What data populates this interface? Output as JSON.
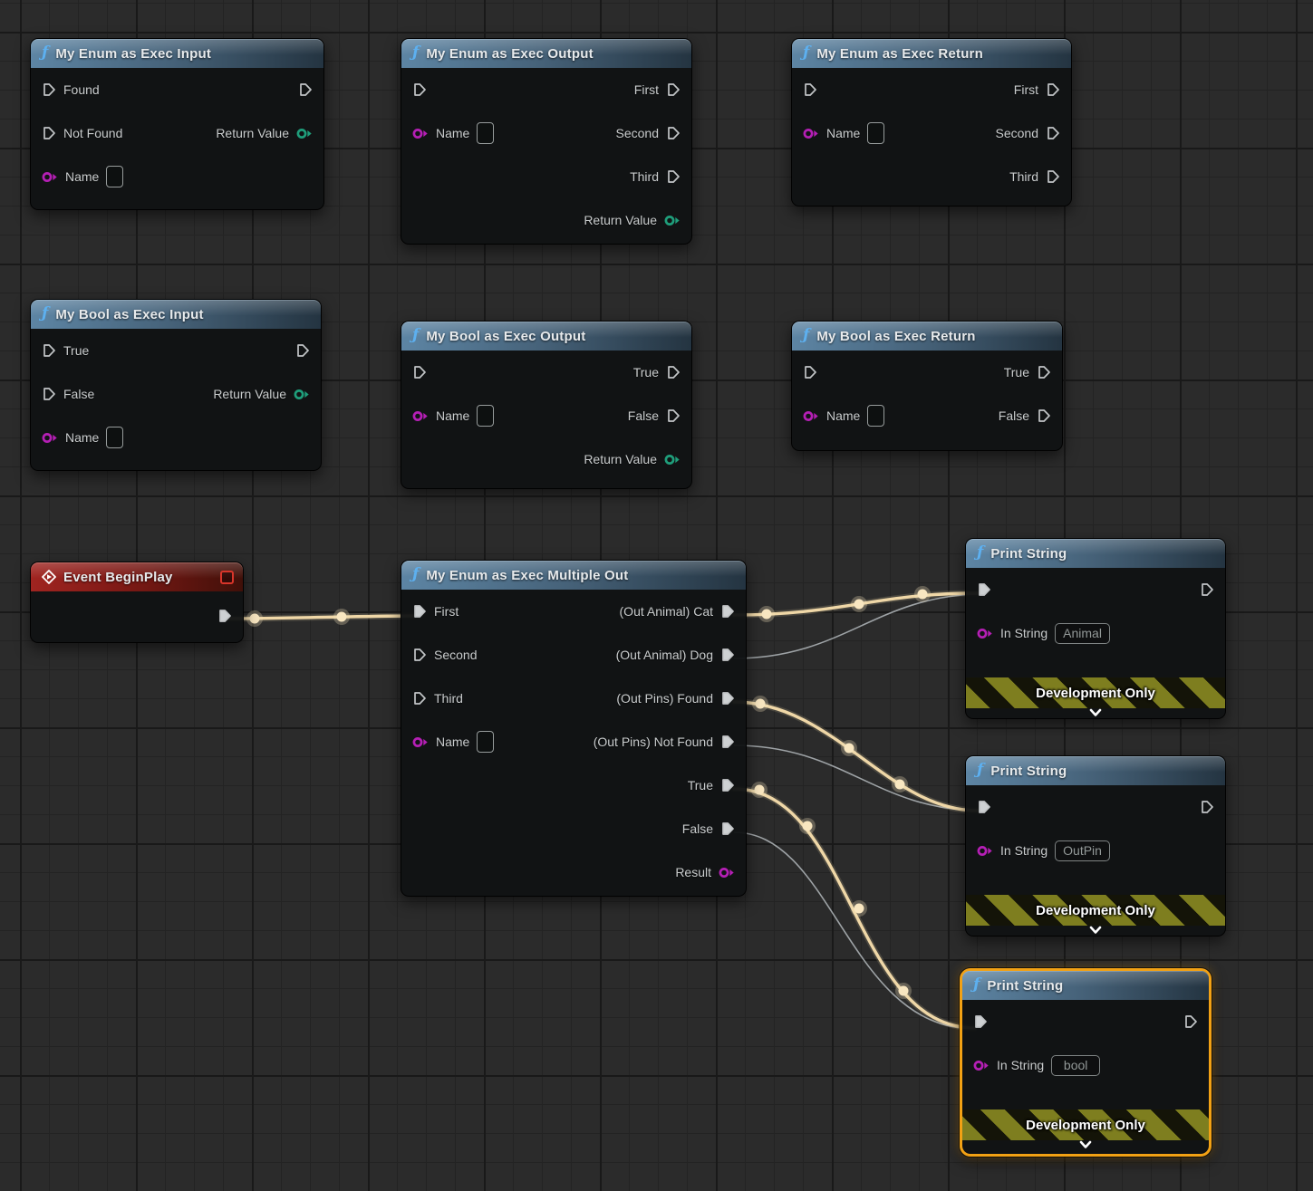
{
  "app": "Unreal Engine Blueprint Graph Editor",
  "colors": {
    "background": "#2b2b2b",
    "grid_minor": "#232323",
    "grid_major": "#191919",
    "node_body": "#111314",
    "header_function_blue": "#5d85a4",
    "header_event_red": "#a02420",
    "exec_wire_active": "#efd7a7",
    "exec_wire_inactive": "#b3b8bc",
    "pin_exec": "#c2c5c7",
    "pin_name_magenta": "#b51fb5",
    "pin_return_green": "#1f9e7b",
    "selection_orange": "#f2a114",
    "banner_olive": "#7e7e1f",
    "function_icon": "ƒ"
  },
  "nodes": [
    {
      "id": "my-enum-as-exec-input",
      "kind": "function",
      "title": "My Enum as Exec Input",
      "pins_left": [
        {
          "label": "Found",
          "kind": "exec",
          "connected": false
        },
        {
          "label": "Not Found",
          "kind": "exec",
          "connected": false
        },
        {
          "label": "Name",
          "kind": "name",
          "connected": false
        }
      ],
      "pins_right": [
        {
          "label": "",
          "kind": "exec",
          "connected": false
        },
        {
          "label": "Return Value",
          "kind": "green",
          "connected": false
        }
      ]
    },
    {
      "id": "my-enum-as-exec-output",
      "kind": "function",
      "title": "My Enum as Exec Output",
      "pins_left": [
        {
          "label": "",
          "kind": "exec",
          "connected": false
        },
        {
          "label": "Name",
          "kind": "name",
          "connected": false
        }
      ],
      "pins_right": [
        {
          "label": "First",
          "kind": "exec",
          "connected": false
        },
        {
          "label": "Second",
          "kind": "exec",
          "connected": false
        },
        {
          "label": "Third",
          "kind": "exec",
          "connected": false
        },
        {
          "label": "Return Value",
          "kind": "green",
          "connected": false
        }
      ]
    },
    {
      "id": "my-enum-as-exec-return",
      "kind": "function",
      "title": "My Enum as Exec Return",
      "pins_left": [
        {
          "label": "",
          "kind": "exec",
          "connected": false
        },
        {
          "label": "Name",
          "kind": "name",
          "connected": false
        }
      ],
      "pins_right": [
        {
          "label": "First",
          "kind": "exec",
          "connected": false
        },
        {
          "label": "Second",
          "kind": "exec",
          "connected": false
        },
        {
          "label": "Third",
          "kind": "exec",
          "connected": false
        }
      ]
    },
    {
      "id": "my-bool-as-exec-input",
      "kind": "function",
      "title": "My Bool as Exec Input",
      "pins_left": [
        {
          "label": "True",
          "kind": "exec",
          "connected": false
        },
        {
          "label": "False",
          "kind": "exec",
          "connected": false
        },
        {
          "label": "Name",
          "kind": "name",
          "connected": false
        }
      ],
      "pins_right": [
        {
          "label": "",
          "kind": "exec",
          "connected": false
        },
        {
          "label": "Return Value",
          "kind": "green",
          "connected": false
        }
      ]
    },
    {
      "id": "my-bool-as-exec-output",
      "kind": "function",
      "title": "My Bool as Exec Output",
      "pins_left": [
        {
          "label": "",
          "kind": "exec",
          "connected": false
        },
        {
          "label": "Name",
          "kind": "name",
          "connected": false
        }
      ],
      "pins_right": [
        {
          "label": "True",
          "kind": "exec",
          "connected": false
        },
        {
          "label": "False",
          "kind": "exec",
          "connected": false
        },
        {
          "label": "Return Value",
          "kind": "green",
          "connected": false
        }
      ]
    },
    {
      "id": "my-bool-as-exec-return",
      "kind": "function",
      "title": "My Bool as Exec Return",
      "pins_left": [
        {
          "label": "",
          "kind": "exec",
          "connected": false
        },
        {
          "label": "Name",
          "kind": "name",
          "connected": false
        }
      ],
      "pins_right": [
        {
          "label": "True",
          "kind": "exec",
          "connected": false
        },
        {
          "label": "False",
          "kind": "exec",
          "connected": false
        }
      ]
    },
    {
      "id": "event-beginplay",
      "kind": "event",
      "title": "Event BeginPlay",
      "pins_left": [],
      "pins_right": [
        {
          "label": "",
          "kind": "exec",
          "connected": true
        }
      ]
    },
    {
      "id": "my-enum-as-exec-multiple-out",
      "kind": "function",
      "title": "My Enum as Exec Multiple Out",
      "pins_left": [
        {
          "label": "First",
          "kind": "exec",
          "connected": true
        },
        {
          "label": "Second",
          "kind": "exec",
          "connected": false
        },
        {
          "label": "Third",
          "kind": "exec",
          "connected": false
        },
        {
          "label": "Name",
          "kind": "name",
          "connected": false
        }
      ],
      "pins_right": [
        {
          "label": "(Out Animal) Cat",
          "kind": "exec",
          "connected": true
        },
        {
          "label": "(Out Animal) Dog",
          "kind": "exec",
          "connected": true
        },
        {
          "label": "(Out Pins) Found",
          "kind": "exec",
          "connected": true
        },
        {
          "label": "(Out Pins) Not Found",
          "kind": "exec",
          "connected": true
        },
        {
          "label": "True",
          "kind": "exec",
          "connected": true
        },
        {
          "label": "False",
          "kind": "exec",
          "connected": true
        },
        {
          "label": "Result",
          "kind": "magenta",
          "connected": false
        }
      ]
    },
    {
      "id": "print-string-1",
      "kind": "print",
      "title": "Print String",
      "banner": "Development Only",
      "pins_left": [
        {
          "label": "",
          "kind": "exec",
          "connected": true
        },
        {
          "label": "In String",
          "kind": "string",
          "value": "Animal",
          "connected": false
        }
      ],
      "pins_right": [
        {
          "label": "",
          "kind": "exec",
          "connected": false
        }
      ]
    },
    {
      "id": "print-string-2",
      "kind": "print",
      "title": "Print String",
      "banner": "Development Only",
      "pins_left": [
        {
          "label": "",
          "kind": "exec",
          "connected": true
        },
        {
          "label": "In String",
          "kind": "string",
          "value": "OutPin",
          "connected": false
        }
      ],
      "pins_right": [
        {
          "label": "",
          "kind": "exec",
          "connected": false
        }
      ]
    },
    {
      "id": "print-string-3",
      "kind": "print",
      "title": "Print String",
      "banner": "Development Only",
      "selected": true,
      "pins_left": [
        {
          "label": "",
          "kind": "exec",
          "connected": true
        },
        {
          "label": "In String",
          "kind": "string",
          "value": "bool",
          "connected": false
        }
      ],
      "pins_right": [
        {
          "label": "",
          "kind": "exec",
          "connected": false
        }
      ]
    }
  ],
  "wires": [
    {
      "from": "event-beginplay.exec-out",
      "to": "my-enum-as-exec-multiple-out.first",
      "state": "active"
    },
    {
      "from": "my-enum-as-exec-multiple-out.out-animal-cat",
      "to": "print-string-1.exec-in",
      "state": "active"
    },
    {
      "from": "my-enum-as-exec-multiple-out.out-animal-dog",
      "to": "print-string-1.exec-in",
      "state": "inactive"
    },
    {
      "from": "my-enum-as-exec-multiple-out.out-pins-found",
      "to": "print-string-2.exec-in",
      "state": "active"
    },
    {
      "from": "my-enum-as-exec-multiple-out.out-pins-not-found",
      "to": "print-string-2.exec-in",
      "state": "inactive"
    },
    {
      "from": "my-enum-as-exec-multiple-out.true",
      "to": "print-string-3.exec-in",
      "state": "active"
    },
    {
      "from": "my-enum-as-exec-multiple-out.false",
      "to": "print-string-3.exec-in",
      "state": "inactive"
    }
  ]
}
